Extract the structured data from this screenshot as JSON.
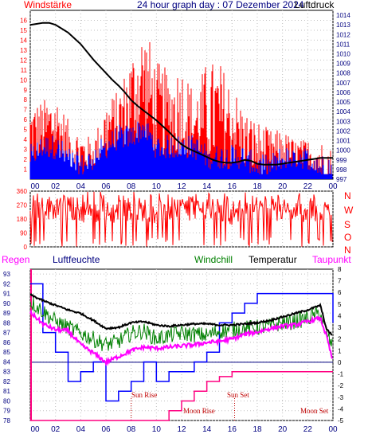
{
  "header": {
    "title": "24 hour graph day : 07 Dezember 2024",
    "left_label": "Windstärke",
    "right_label": "Luftdruck"
  },
  "bottom_header": {
    "regen": "Regen",
    "luftfeuchte": "Luftfeuchte",
    "windchill": "Windchill",
    "temperatur": "Temperatur",
    "taupunkt": "Taupunkt"
  },
  "direction_labels": [
    "N",
    "W",
    "S",
    "O",
    "N"
  ],
  "annotations": {
    "sun_rise": "Sun Rise",
    "sun_set": "Sun Set",
    "moon_rise": "Moon Rise",
    "moon_set": "Moon Set"
  },
  "colors": {
    "title": "#000080",
    "windstaerke": "#ff0000",
    "wind_blue": "#0000ff",
    "pressure": "#000000",
    "regen": "#ff00ff",
    "windchill": "#008000",
    "temperatur": "#000000",
    "taupunkt": "#ff00ff",
    "rain_line": "#ff0080",
    "humidity": "#0000ff",
    "panel_bg": "#ffffff",
    "grid": "#c0c0c0",
    "axis_left": "#ff0000",
    "axis_right": "#000080"
  },
  "chart_data": [
    {
      "type": "line",
      "title": "24 hour graph day : 07 Dezember 2024",
      "x_ticks": [
        "00",
        "02",
        "04",
        "06",
        "08",
        "10",
        "12",
        "14",
        "16",
        "18",
        "20",
        "22",
        "00"
      ],
      "y_left_label": "Windstärke",
      "y_left_ticks": [
        1,
        2,
        3,
        4,
        5,
        6,
        7,
        8,
        9,
        10,
        11,
        12,
        13,
        14,
        15,
        16
      ],
      "y_left_range": [
        0,
        17
      ],
      "y_right_label": "Luftdruck",
      "y_right_ticks": [
        997,
        998,
        999,
        1000,
        1001,
        1002,
        1003,
        1004,
        1005,
        1006,
        1007,
        1008,
        1009,
        1010,
        1011,
        1012,
        1013,
        1014
      ],
      "y_right_range": [
        997,
        1014.5
      ],
      "series": [
        {
          "name": "Luftdruck",
          "x_hours": [
            0,
            0.5,
            1,
            1.5,
            2,
            2.5,
            3,
            3.5,
            4,
            4.5,
            5,
            5.5,
            6,
            6.5,
            7,
            7.5,
            8,
            8.5,
            9,
            9.5,
            10,
            10.5,
            11,
            11.5,
            12,
            12.5,
            13,
            13.5,
            14,
            14.5,
            15,
            15.5,
            16,
            16.5,
            17,
            17.5,
            18,
            18.5,
            19,
            19.5,
            20,
            20.5,
            21,
            21.5,
            22,
            22.5,
            23,
            23.5,
            24
          ],
          "values": [
            1013.0,
            1013.1,
            1013.2,
            1013.2,
            1013.0,
            1012.6,
            1012.2,
            1011.6,
            1011.0,
            1010.2,
            1009.4,
            1008.7,
            1008.0,
            1007.3,
            1006.7,
            1006.0,
            1005.2,
            1004.6,
            1004.1,
            1003.6,
            1003.1,
            1002.5,
            1001.9,
            1001.2,
            1000.6,
            1000.2,
            999.9,
            999.6,
            999.3,
            999.0,
            998.8,
            998.7,
            998.7,
            998.8,
            999.0,
            998.9,
            998.6,
            998.5,
            998.5,
            998.5,
            998.6,
            998.7,
            998.8,
            998.9,
            999.0,
            999.1,
            999.2,
            999.2,
            999.2
          ]
        },
        {
          "name": "Windstärke",
          "type": "bar",
          "x_hours": [
            0,
            1,
            2,
            3,
            4,
            5,
            6,
            7,
            8,
            9,
            10,
            11,
            12,
            13,
            14,
            15,
            16,
            17,
            18,
            19,
            20,
            21,
            22,
            23,
            24
          ],
          "max": [
            8,
            8,
            9,
            6,
            5,
            4,
            8,
            9,
            13,
            16,
            12,
            11,
            12,
            9,
            12,
            12,
            10,
            7,
            6,
            5,
            5,
            4,
            4,
            4,
            3
          ],
          "min": [
            1,
            2,
            2,
            1,
            0,
            1,
            2,
            3,
            3,
            4,
            2,
            2,
            2,
            2,
            1,
            1,
            1,
            1,
            0,
            0,
            1,
            1,
            1,
            0,
            0
          ]
        }
      ]
    },
    {
      "type": "scatter",
      "title": "",
      "y_ticks": [
        0,
        90,
        180,
        270,
        360
      ],
      "y_range": [
        0,
        360
      ],
      "x_ticks": [
        "00",
        "02",
        "04",
        "06",
        "08",
        "10",
        "12",
        "14",
        "16",
        "18",
        "20",
        "22",
        "00"
      ],
      "series": [
        {
          "name": "Windrichtung",
          "x_hours": [
            0,
            2,
            4,
            6,
            8,
            10,
            12,
            14,
            16,
            18,
            20,
            22,
            24
          ],
          "values": [
            230,
            260,
            240,
            210,
            250,
            230,
            250,
            240,
            220,
            250,
            230,
            240,
            220
          ]
        }
      ]
    },
    {
      "type": "line",
      "title": "",
      "x_ticks": [
        "00",
        "02",
        "04",
        "06",
        "08",
        "10",
        "12",
        "14",
        "16",
        "18",
        "20",
        "22",
        "00"
      ],
      "y_left_ticks": [
        78,
        79,
        80,
        81,
        82,
        83,
        84,
        85,
        86,
        87,
        88,
        89,
        90,
        91,
        92,
        93
      ],
      "y_left_range": [
        78,
        93.5
      ],
      "y_right_ticks": [
        -5,
        -4,
        -3,
        -2,
        -1,
        0,
        1,
        2,
        3,
        4,
        5,
        6,
        7,
        8
      ],
      "y_right_range": [
        -5,
        8
      ],
      "series": [
        {
          "name": "Temperatur",
          "x_hours": [
            0,
            1,
            2,
            3,
            4,
            5,
            6,
            7,
            8,
            9,
            10,
            11,
            12,
            13,
            14,
            15,
            16,
            17,
            18,
            19,
            20,
            21,
            22,
            23,
            23.5,
            24
          ],
          "values": [
            5.8,
            5.3,
            4.9,
            4.5,
            4.2,
            3.6,
            2.9,
            3.0,
            3.4,
            3.5,
            3.2,
            3.1,
            3.2,
            3.3,
            3.3,
            3.2,
            3.2,
            3.3,
            3.4,
            3.6,
            3.9,
            4.2,
            4.5,
            4.9,
            2.8,
            2.3
          ]
        },
        {
          "name": "Windchill",
          "x_hours": [
            0,
            1,
            2,
            3,
            4,
            5,
            6,
            7,
            8,
            9,
            10,
            11,
            12,
            13,
            14,
            15,
            16,
            17,
            18,
            19,
            20,
            21,
            22,
            23,
            23.5,
            24
          ],
          "values": [
            5.2,
            4.4,
            3.5,
            3.0,
            2.5,
            2.0,
            1.5,
            1.8,
            2.5,
            2.7,
            2.0,
            2.3,
            2.5,
            2.4,
            2.3,
            2.7,
            2.8,
            2.9,
            3.0,
            3.1,
            3.4,
            3.5,
            3.8,
            4.2,
            2.5,
            1.2
          ]
        },
        {
          "name": "Taupunkt",
          "x_hours": [
            0,
            1,
            2,
            3,
            4,
            5,
            6,
            7,
            8,
            9,
            10,
            11,
            12,
            13,
            14,
            15,
            16,
            17,
            18,
            19,
            20,
            21,
            22,
            23,
            23.5,
            24
          ],
          "values": [
            4.3,
            3.3,
            2.8,
            2.7,
            1.5,
            0.8,
            0.0,
            0.5,
            1.0,
            1.3,
            1.2,
            1.3,
            1.4,
            1.5,
            1.7,
            1.8,
            2.0,
            2.4,
            2.6,
            2.9,
            3.1,
            3.2,
            3.5,
            3.8,
            2.2,
            0.0
          ]
        },
        {
          "name": "Luftfeuchte",
          "x_hours": [
            0,
            1,
            2,
            3,
            4,
            5,
            6,
            7,
            8,
            9,
            10,
            11,
            12,
            13,
            14,
            15,
            16,
            17,
            18,
            19,
            20,
            21,
            22,
            23,
            24
          ],
          "values": [
            92,
            87,
            85,
            82,
            83,
            84,
            80,
            81,
            82,
            84,
            82,
            83,
            83,
            84,
            85,
            88,
            89,
            90,
            91,
            91,
            91,
            91,
            91,
            91,
            88
          ]
        },
        {
          "name": "Regen",
          "x_hours": [
            0,
            5,
            8,
            9,
            10,
            11,
            12,
            13,
            14,
            15,
            16,
            17,
            18,
            19,
            20,
            21,
            22,
            23,
            24
          ],
          "values": [
            78,
            78,
            78,
            78,
            78,
            79,
            80,
            81,
            82,
            82.5,
            83,
            83,
            83,
            83,
            83,
            83,
            83,
            83,
            83
          ]
        }
      ]
    }
  ]
}
